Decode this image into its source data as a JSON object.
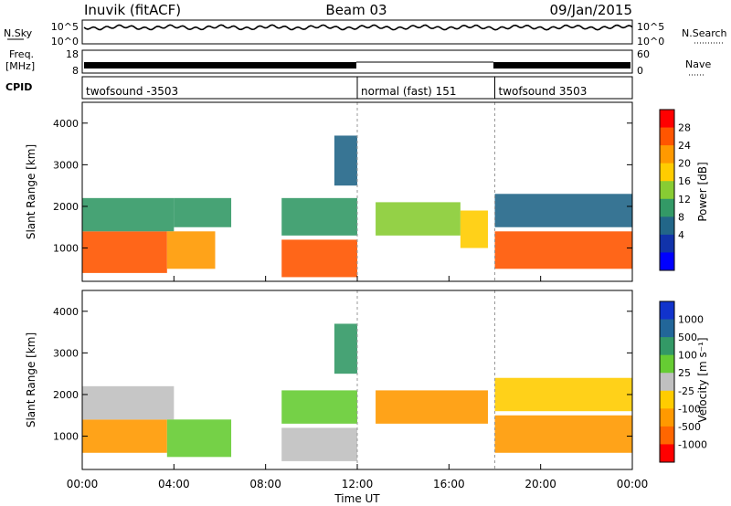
{
  "header": {
    "station": "Inuvik (fitACF)",
    "beam": "Beam 03",
    "date": "09/Jan/2015"
  },
  "panels": {
    "nsky": {
      "left_label": "N.Sky",
      "right_label": "N.Search",
      "tick_top": "10^5",
      "tick_bottom": "10^0"
    },
    "freq": {
      "label_line1": "Freq.",
      "label_line2": "[MHz]",
      "left_ticks": [
        "18",
        "8"
      ],
      "right_label": "Nave",
      "right_ticks": [
        "60",
        "0"
      ]
    },
    "cpid": {
      "label": "CPID",
      "segments": [
        {
          "start_h": 0,
          "end_h": 12,
          "text": "twofsound -3503"
        },
        {
          "start_h": 12,
          "end_h": 18,
          "text": "normal (fast) 151"
        },
        {
          "start_h": 18,
          "end_h": 24,
          "text": "twofsound 3503"
        }
      ]
    }
  },
  "colorbars": {
    "power": {
      "title": "Power [dB]",
      "ticks": [
        "28",
        "24",
        "20",
        "16",
        "12",
        "8",
        "4"
      ],
      "colors": [
        "#ff0000",
        "#ff5500",
        "#ff9900",
        "#ffcc00",
        "#88cc33",
        "#339966",
        "#226688",
        "#1133aa",
        "#0000ff"
      ]
    },
    "velocity": {
      "title": "Velocity [m s⁻¹]",
      "ticks": [
        "1000",
        "500",
        "100",
        "25",
        "-25",
        "-100",
        "-500",
        "-1000"
      ],
      "colors": [
        "#1133cc",
        "#226699",
        "#339966",
        "#66cc33",
        "#c0c0c0",
        "#ffcc00",
        "#ff9900",
        "#ff6600",
        "#ff0000"
      ]
    }
  },
  "chart_data": [
    {
      "type": "heatmap",
      "title": "",
      "ylabel": "Slant Range [km]",
      "xlabel": "",
      "xlim": [
        0,
        24
      ],
      "ylim": [
        200,
        4500
      ],
      "y_ticks": [
        1000,
        2000,
        3000,
        4000
      ],
      "z_label": "Power [dB]",
      "z_range": [
        0,
        30
      ],
      "regions": [
        {
          "t0": 0.0,
          "t1": 3.7,
          "r0": 400,
          "r1": 1400,
          "z": 26
        },
        {
          "t0": 0.0,
          "t1": 4.0,
          "r0": 1400,
          "r1": 2200,
          "z": 12
        },
        {
          "t0": 3.7,
          "t1": 5.8,
          "r0": 500,
          "r1": 1400,
          "z": 22
        },
        {
          "t0": 4.0,
          "t1": 6.5,
          "r0": 1500,
          "r1": 2200,
          "z": 10
        },
        {
          "t0": 8.7,
          "t1": 12.0,
          "r0": 300,
          "r1": 1200,
          "z": 28
        },
        {
          "t0": 8.7,
          "t1": 12.0,
          "r0": 1300,
          "r1": 2200,
          "z": 10
        },
        {
          "t0": 12.8,
          "t1": 16.5,
          "r0": 1300,
          "r1": 2100,
          "z": 14
        },
        {
          "t0": 16.5,
          "t1": 17.7,
          "r0": 1000,
          "r1": 1900,
          "z": 18
        },
        {
          "t0": 18.0,
          "t1": 24.0,
          "r0": 500,
          "r1": 1400,
          "z": 26
        },
        {
          "t0": 18.0,
          "t1": 24.0,
          "r0": 1500,
          "r1": 2300,
          "z": 8
        },
        {
          "t0": 11.0,
          "t1": 12.0,
          "r0": 2500,
          "r1": 3700,
          "z": 8
        }
      ]
    },
    {
      "type": "heatmap",
      "title": "",
      "ylabel": "Slant Range [km]",
      "xlabel": "Time UT",
      "xlim": [
        0,
        24
      ],
      "ylim": [
        200,
        4500
      ],
      "y_ticks": [
        1000,
        2000,
        3000,
        4000
      ],
      "x_ticks": [
        "00:00",
        "04:00",
        "08:00",
        "12:00",
        "16:00",
        "20:00",
        "00:00"
      ],
      "z_label": "Velocity [m s⁻¹]",
      "regions": [
        {
          "t0": 0.0,
          "t1": 3.7,
          "r0": 600,
          "r1": 1400,
          "z": -300
        },
        {
          "t0": 0.0,
          "t1": 4.0,
          "r0": 1400,
          "r1": 2200,
          "z": 20
        },
        {
          "t0": 3.7,
          "t1": 6.5,
          "r0": 500,
          "r1": 1400,
          "z": 80
        },
        {
          "t0": 8.7,
          "t1": 12.0,
          "r0": 400,
          "r1": 1200,
          "z": 0
        },
        {
          "t0": 8.7,
          "t1": 12.0,
          "r0": 1300,
          "r1": 2100,
          "z": 60
        },
        {
          "t0": 12.8,
          "t1": 17.7,
          "r0": 1300,
          "r1": 2100,
          "z": -300
        },
        {
          "t0": 18.0,
          "t1": 24.0,
          "r0": 600,
          "r1": 1500,
          "z": -400
        },
        {
          "t0": 18.0,
          "t1": 24.0,
          "r0": 1600,
          "r1": 2400,
          "z": -100
        },
        {
          "t0": 11.0,
          "t1": 12.0,
          "r0": 2500,
          "r1": 3700,
          "z": 100
        }
      ]
    }
  ]
}
